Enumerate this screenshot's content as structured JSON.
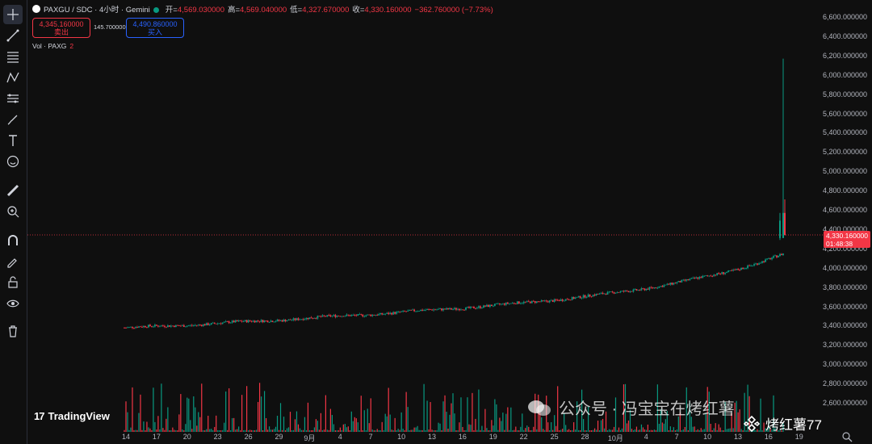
{
  "header": {
    "symbol": "PAXGU / SDC · 4小时 · Gemini",
    "open_label": "开=",
    "open": "4,569.030000",
    "high_label": "高=",
    "high": "4,569.040000",
    "low_label": "低=",
    "low": "4,327.670000",
    "close_label": "收=",
    "close": "4,330.160000",
    "change": "−362.760000 (−7.73%)"
  },
  "trade": {
    "sell_price": "4,345.160000",
    "sell_label": "卖出",
    "spread": "145.700000",
    "buy_price": "4,490.860000",
    "buy_label": "买入"
  },
  "volume_indicator": {
    "label": "Vol · PAXG",
    "value": "2"
  },
  "last_price": {
    "price": "4,330.160000",
    "countdown": "01:48:38"
  },
  "price_axis": [
    "6,600.000000",
    "6,400.000000",
    "6,200.000000",
    "6,000.000000",
    "5,800.000000",
    "5,600.000000",
    "5,400.000000",
    "5,200.000000",
    "5,000.000000",
    "4,800.000000",
    "4,600.000000",
    "4,400.000000",
    "4,200.000000",
    "4,000.000000",
    "3,800.000000",
    "3,600.000000",
    "3,400.000000",
    "3,200.000000",
    "3,000.000000",
    "2,800.000000",
    "2,600.000000"
  ],
  "time_axis": [
    "14",
    "17",
    "20",
    "23",
    "26",
    "29",
    "9月",
    "4",
    "7",
    "10",
    "13",
    "16",
    "19",
    "22",
    "25",
    "28",
    "10月",
    "4",
    "7",
    "10",
    "13",
    "16",
    "19"
  ],
  "branding": {
    "logo_text": "TradingView"
  },
  "watermarks": {
    "wechat": "公众号 · 冯宝宝在烤红薯",
    "author": "烤红薯77"
  },
  "colors": {
    "up": "#089981",
    "down": "#f23645",
    "background": "#0f0f0f",
    "buy": "#2962ff"
  },
  "toolbar_icons": [
    "crosshair-icon",
    "trendline-icon",
    "fib-lines-icon",
    "pattern-icon",
    "forecast-icon",
    "brush-icon",
    "text-icon",
    "emoji-icon",
    "ruler-icon",
    "zoom-in-icon",
    "magnet-icon",
    "lock-draw-icon",
    "lock-icon",
    "eye-icon",
    "trash-icon"
  ]
}
